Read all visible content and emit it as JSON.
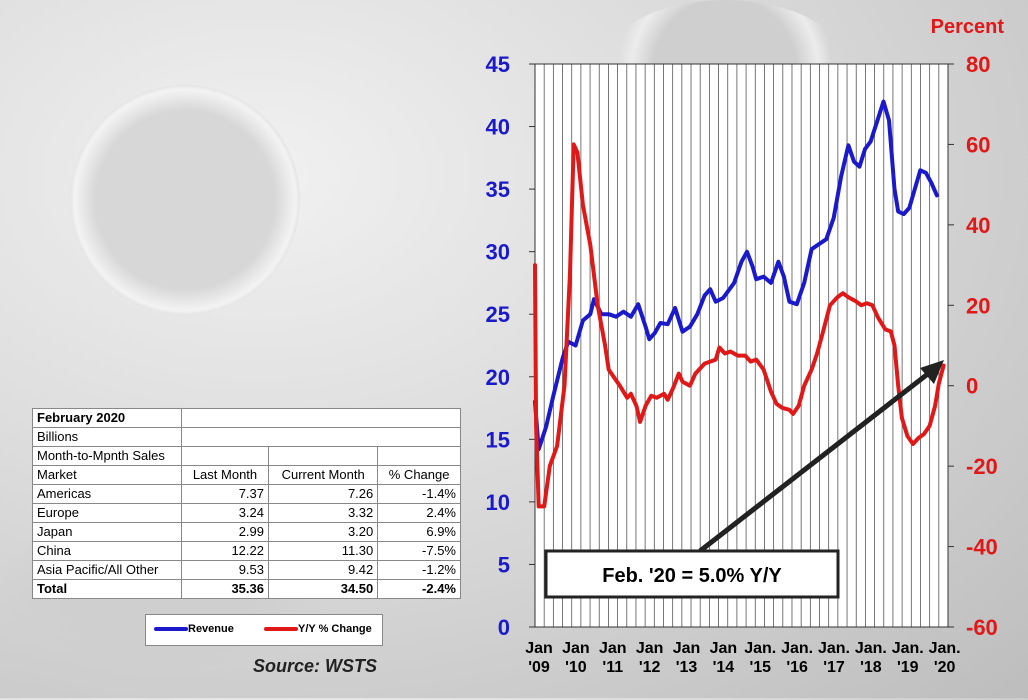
{
  "table": {
    "title": "February 2020",
    "unit": "Billions",
    "subtitle": "Month-to-Mpnth Sales",
    "headers": [
      "Market",
      "Last Month",
      "Current Month",
      "% Change"
    ],
    "rows": [
      [
        "Americas",
        "7.37",
        "7.26",
        "-1.4%"
      ],
      [
        "Europe",
        "3.24",
        "3.32",
        "2.4%"
      ],
      [
        "Japan",
        "2.99",
        "3.20",
        "6.9%"
      ],
      [
        "China",
        "12.22",
        "11.30",
        "-7.5%"
      ],
      [
        "Asia Pacific/All Other",
        "9.53",
        "9.42",
        "-1.2%"
      ]
    ],
    "total": [
      "Total",
      "35.36",
      "34.50",
      "-2.4%"
    ]
  },
  "legend": {
    "revenue": "Revenue",
    "yoy": "Y/Y % Change"
  },
  "source": "Source: WSTS",
  "chart_data": {
    "type": "line",
    "right_axis_title": "Percent",
    "annotation": "Feb. '20 = 5.0% Y/Y",
    "x_tick_labels": [
      [
        "Jan",
        "'09"
      ],
      [
        "Jan",
        "'10"
      ],
      [
        "Jan",
        "'11"
      ],
      [
        "Jan",
        "'12"
      ],
      [
        "Jan",
        "'13"
      ],
      [
        "Jan",
        "'14"
      ],
      [
        "Jan.",
        "'15"
      ],
      [
        "Jan.",
        "'16"
      ],
      [
        "Jan.",
        "'17"
      ],
      [
        "Jan.",
        "'18"
      ],
      [
        "Jan.",
        "'19"
      ],
      [
        "Jan.",
        "'20"
      ]
    ],
    "y_left": {
      "min": 0,
      "max": 45,
      "step": 5,
      "color": "#1a1acc"
    },
    "y_right": {
      "min": -60,
      "max": 80,
      "step": 20,
      "color": "#e01818"
    },
    "x_range": [
      2009.0,
      2020.2
    ],
    "grid": "vertical",
    "series": [
      {
        "name": "Revenue",
        "axis": "left",
        "color": "#1a1acc",
        "points": [
          [
            2009.0,
            18.0
          ],
          [
            2009.1,
            14.2
          ],
          [
            2009.3,
            16.0
          ],
          [
            2009.5,
            18.5
          ],
          [
            2009.75,
            21.5
          ],
          [
            2009.9,
            22.8
          ],
          [
            2010.1,
            22.5
          ],
          [
            2010.3,
            24.5
          ],
          [
            2010.5,
            25.0
          ],
          [
            2010.6,
            26.2
          ],
          [
            2010.8,
            25.0
          ],
          [
            2011.0,
            25.0
          ],
          [
            2011.2,
            24.8
          ],
          [
            2011.4,
            25.2
          ],
          [
            2011.6,
            24.8
          ],
          [
            2011.8,
            25.8
          ],
          [
            2012.0,
            24.0
          ],
          [
            2012.1,
            23.0
          ],
          [
            2012.25,
            23.5
          ],
          [
            2012.4,
            24.3
          ],
          [
            2012.6,
            24.2
          ],
          [
            2012.8,
            25.5
          ],
          [
            2013.0,
            23.6
          ],
          [
            2013.2,
            24.0
          ],
          [
            2013.4,
            25.0
          ],
          [
            2013.6,
            26.5
          ],
          [
            2013.75,
            27.0
          ],
          [
            2013.9,
            26.0
          ],
          [
            2014.1,
            26.3
          ],
          [
            2014.4,
            27.5
          ],
          [
            2014.6,
            29.2
          ],
          [
            2014.75,
            30.0
          ],
          [
            2014.9,
            28.8
          ],
          [
            2015.0,
            27.8
          ],
          [
            2015.2,
            28.0
          ],
          [
            2015.4,
            27.5
          ],
          [
            2015.6,
            29.2
          ],
          [
            2015.75,
            28.0
          ],
          [
            2015.9,
            26.0
          ],
          [
            2016.1,
            25.8
          ],
          [
            2016.3,
            27.5
          ],
          [
            2016.5,
            30.2
          ],
          [
            2016.7,
            30.6
          ],
          [
            2016.9,
            31.0
          ],
          [
            2017.1,
            32.7
          ],
          [
            2017.3,
            36.0
          ],
          [
            2017.5,
            38.5
          ],
          [
            2017.65,
            37.2
          ],
          [
            2017.8,
            36.8
          ],
          [
            2017.95,
            38.2
          ],
          [
            2018.1,
            38.8
          ],
          [
            2018.3,
            40.6
          ],
          [
            2018.45,
            42.0
          ],
          [
            2018.6,
            40.5
          ],
          [
            2018.75,
            35.0
          ],
          [
            2018.85,
            33.2
          ],
          [
            2019.0,
            33.0
          ],
          [
            2019.15,
            33.5
          ],
          [
            2019.3,
            35.0
          ],
          [
            2019.45,
            36.5
          ],
          [
            2019.6,
            36.3
          ],
          [
            2019.75,
            35.5
          ],
          [
            2019.9,
            34.5
          ]
        ]
      },
      {
        "name": "Y/Y % Change",
        "axis": "right",
        "color": "#e01818",
        "points": [
          [
            2009.0,
            30.0
          ],
          [
            2009.03,
            -10.0
          ],
          [
            2009.1,
            -30.0
          ],
          [
            2009.25,
            -30.0
          ],
          [
            2009.4,
            -20.0
          ],
          [
            2009.6,
            -15.0
          ],
          [
            2009.8,
            0.0
          ],
          [
            2009.95,
            28.0
          ],
          [
            2010.05,
            60.0
          ],
          [
            2010.15,
            58.0
          ],
          [
            2010.3,
            45.0
          ],
          [
            2010.5,
            35.0
          ],
          [
            2010.7,
            20.0
          ],
          [
            2010.9,
            10.0
          ],
          [
            2011.0,
            4.0
          ],
          [
            2011.15,
            2.0
          ],
          [
            2011.3,
            0.0
          ],
          [
            2011.5,
            -3.0
          ],
          [
            2011.6,
            -2.0
          ],
          [
            2011.75,
            -5.0
          ],
          [
            2011.85,
            -9.0
          ],
          [
            2012.0,
            -5.0
          ],
          [
            2012.15,
            -2.5
          ],
          [
            2012.3,
            -3.0
          ],
          [
            2012.5,
            -2.0
          ],
          [
            2012.6,
            -3.5
          ],
          [
            2012.75,
            -0.5
          ],
          [
            2012.9,
            3.0
          ],
          [
            2013.0,
            1.0
          ],
          [
            2013.2,
            0.0
          ],
          [
            2013.35,
            3.0
          ],
          [
            2013.6,
            5.5
          ],
          [
            2013.75,
            6.0
          ],
          [
            2013.9,
            6.5
          ],
          [
            2014.0,
            9.5
          ],
          [
            2014.15,
            8.0
          ],
          [
            2014.3,
            8.5
          ],
          [
            2014.5,
            7.5
          ],
          [
            2014.7,
            7.5
          ],
          [
            2014.85,
            6.0
          ],
          [
            2015.0,
            6.5
          ],
          [
            2015.2,
            4.0
          ],
          [
            2015.4,
            -1.5
          ],
          [
            2015.55,
            -4.5
          ],
          [
            2015.7,
            -5.5
          ],
          [
            2015.9,
            -6.0
          ],
          [
            2016.0,
            -7.0
          ],
          [
            2016.15,
            -5.0
          ],
          [
            2016.3,
            0.0
          ],
          [
            2016.5,
            4.0
          ],
          [
            2016.65,
            8.0
          ],
          [
            2016.8,
            13.0
          ],
          [
            2017.0,
            20.0
          ],
          [
            2017.2,
            22.0
          ],
          [
            2017.35,
            23.0
          ],
          [
            2017.5,
            22.0
          ],
          [
            2017.7,
            21.0
          ],
          [
            2017.85,
            20.0
          ],
          [
            2018.0,
            20.5
          ],
          [
            2018.15,
            20.0
          ],
          [
            2018.3,
            17.0
          ],
          [
            2018.5,
            14.0
          ],
          [
            2018.65,
            13.5
          ],
          [
            2018.75,
            10.0
          ],
          [
            2018.85,
            0.0
          ],
          [
            2018.95,
            -8.0
          ],
          [
            2019.1,
            -12.5
          ],
          [
            2019.25,
            -14.5
          ],
          [
            2019.4,
            -13.0
          ],
          [
            2019.55,
            -12.0
          ],
          [
            2019.7,
            -10.0
          ],
          [
            2019.85,
            -5.0
          ],
          [
            2019.95,
            0.5
          ],
          [
            2020.08,
            5.0
          ]
        ]
      }
    ]
  }
}
